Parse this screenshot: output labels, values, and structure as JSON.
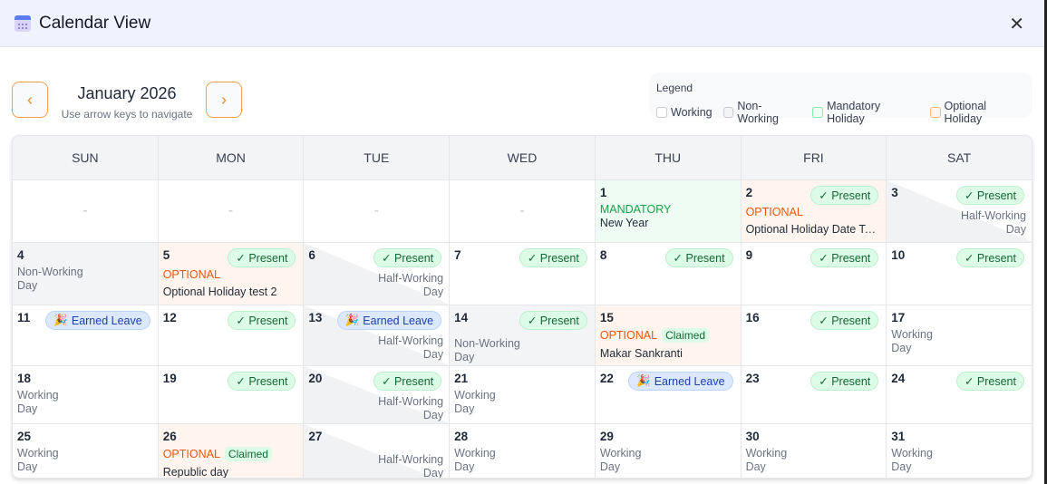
{
  "header": {
    "title": "Calendar View",
    "icon": "calendar-icon",
    "close_icon": "close-icon"
  },
  "nav": {
    "prev_icon": "chevron-left-icon",
    "next_icon": "chevron-right-icon",
    "prev": "‹",
    "next": "›",
    "month": "January 2026",
    "hint": "Use arrow keys to navigate"
  },
  "legend": {
    "title": "Legend",
    "items": [
      {
        "label": "Working",
        "color": "#ffffff",
        "border": "#c9ccd2"
      },
      {
        "label": "Non-Working",
        "color": "#f3f4f6",
        "border": "#c9ccd2"
      },
      {
        "label": "Mandatory Holiday",
        "color": "#effcf3",
        "border": "#86efac"
      },
      {
        "label": "Optional Holiday",
        "color": "#fff5ee",
        "border": "#fdba74"
      }
    ]
  },
  "weekdays": [
    "SUN",
    "MON",
    "TUE",
    "WED",
    "THU",
    "FRI",
    "SAT"
  ],
  "labels": {
    "present": "✓ Present",
    "earned": "Earned Leave",
    "earned_icon": "🎉",
    "working": "Working Day",
    "nonworking": "Non-Working Day",
    "half": "Half-Working Day",
    "mandatory": "MANDATORY",
    "optional": "OPTIONAL",
    "claimed": "Claimed",
    "empty": "-"
  },
  "colors": {
    "accent": "#f59e4b",
    "mandatory": "#16a34a",
    "optional": "#ea580c",
    "present": "#166534",
    "earned": "#1e40af"
  },
  "days": [
    {
      "type": "empty"
    },
    {
      "type": "empty"
    },
    {
      "type": "empty"
    },
    {
      "type": "empty"
    },
    {
      "day": "1",
      "type": "mandatory",
      "holiday": "New Year"
    },
    {
      "day": "2",
      "type": "optional",
      "badge": "present",
      "holiday": "Optional Holiday Date Tes..."
    },
    {
      "day": "3",
      "type": "half",
      "badge": "present"
    },
    {
      "day": "4",
      "type": "nonworking"
    },
    {
      "day": "5",
      "type": "optional",
      "badge": "present",
      "holiday": "Optional Holiday test 2"
    },
    {
      "day": "6",
      "type": "half",
      "badge": "present"
    },
    {
      "day": "7",
      "type": "plain",
      "badge": "present"
    },
    {
      "day": "8",
      "type": "plain",
      "badge": "present"
    },
    {
      "day": "9",
      "type": "plain",
      "badge": "present"
    },
    {
      "day": "10",
      "type": "plain",
      "badge": "present"
    },
    {
      "day": "11",
      "type": "plain",
      "badge": "earned"
    },
    {
      "day": "12",
      "type": "plain",
      "badge": "present"
    },
    {
      "day": "13",
      "type": "half",
      "badge": "earned"
    },
    {
      "day": "14",
      "type": "nonworking",
      "badge": "present"
    },
    {
      "day": "15",
      "type": "optional",
      "claimed": true,
      "holiday": "Makar Sankranti"
    },
    {
      "day": "16",
      "type": "plain",
      "badge": "present"
    },
    {
      "day": "17",
      "type": "working"
    },
    {
      "day": "18",
      "type": "working"
    },
    {
      "day": "19",
      "type": "plain",
      "badge": "present"
    },
    {
      "day": "20",
      "type": "half",
      "badge": "present"
    },
    {
      "day": "21",
      "type": "working"
    },
    {
      "day": "22",
      "type": "plain",
      "badge": "earned"
    },
    {
      "day": "23",
      "type": "plain",
      "badge": "present"
    },
    {
      "day": "24",
      "type": "plain",
      "badge": "present"
    },
    {
      "day": "25",
      "type": "working"
    },
    {
      "day": "26",
      "type": "optional",
      "claimed": true,
      "holiday": "Republic day"
    },
    {
      "day": "27",
      "type": "half"
    },
    {
      "day": "28",
      "type": "working"
    },
    {
      "day": "29",
      "type": "working"
    },
    {
      "day": "30",
      "type": "working"
    },
    {
      "day": "31",
      "type": "working"
    }
  ]
}
